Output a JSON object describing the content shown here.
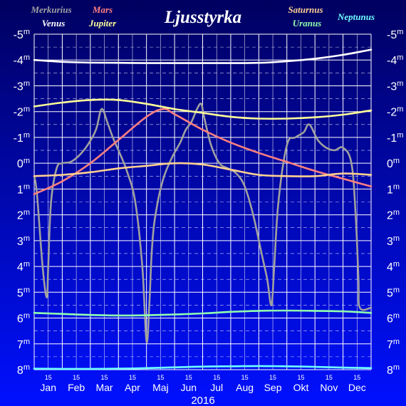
{
  "chart_data": {
    "type": "line",
    "title": "Ljusstyrka",
    "year_label": "2016",
    "x_unit": "month",
    "xlim": [
      0,
      12
    ],
    "ylim": [
      -5,
      8
    ],
    "y_inverted": true,
    "y_unit": "m",
    "grid": true,
    "legend_position": "top",
    "y_ticks": [
      {
        "v": -5,
        "label": "-5"
      },
      {
        "v": -4,
        "label": "-4"
      },
      {
        "v": -3,
        "label": "-3"
      },
      {
        "v": -2,
        "label": "-2"
      },
      {
        "v": -1,
        "label": "-1"
      },
      {
        "v": 0,
        "label": "0"
      },
      {
        "v": 1,
        "label": "1"
      },
      {
        "v": 2,
        "label": "2"
      },
      {
        "v": 3,
        "label": "3"
      },
      {
        "v": 4,
        "label": "4"
      },
      {
        "v": 5,
        "label": "5"
      },
      {
        "v": 6,
        "label": "6"
      },
      {
        "v": 7,
        "label": "7"
      },
      {
        "v": 8,
        "label": "8"
      }
    ],
    "months": [
      "Jan",
      "Feb",
      "Mar",
      "Apr",
      "Maj",
      "Jun",
      "Jul",
      "Aug",
      "Sep",
      "Okt",
      "Nov",
      "Dec"
    ],
    "mid_label": "15",
    "series": [
      {
        "name": "Merkurius",
        "color": "#a0a0a0",
        "x": [
          0.0,
          0.1,
          0.3,
          0.45,
          0.5,
          0.6,
          0.8,
          1.0,
          1.3,
          1.6,
          1.9,
          2.2,
          2.4,
          2.6,
          2.8,
          3.0,
          3.3,
          3.6,
          3.85,
          4.0,
          4.1,
          4.2,
          4.35,
          4.6,
          4.9,
          5.2,
          5.4,
          5.6,
          5.8,
          5.95,
          6.05,
          6.3,
          6.6,
          6.9,
          7.2,
          7.5,
          7.8,
          8.1,
          8.3,
          8.45,
          8.55,
          8.7,
          9.0,
          9.3,
          9.6,
          9.8,
          10.1,
          10.4,
          10.7,
          11.0,
          11.3,
          11.45,
          11.55,
          11.6,
          12.0
        ],
        "y": [
          0.5,
          1.2,
          4.0,
          5.2,
          4.0,
          1.5,
          0.2,
          0.0,
          -0.05,
          -0.3,
          -0.7,
          -1.3,
          -2.1,
          -1.6,
          -1.0,
          -0.5,
          0.3,
          1.5,
          4.0,
          6.9,
          5.5,
          3.2,
          1.8,
          0.6,
          -0.2,
          -0.8,
          -1.3,
          -1.6,
          -2.1,
          -2.3,
          -1.8,
          -0.7,
          0.0,
          0.2,
          0.4,
          0.9,
          2.0,
          3.5,
          4.5,
          5.5,
          4.0,
          1.5,
          -0.7,
          -1.0,
          -1.2,
          -1.5,
          -0.9,
          -0.6,
          -0.5,
          -0.6,
          0.0,
          2.0,
          4.5,
          5.6,
          5.6
        ]
      },
      {
        "name": "Venus",
        "color": "#ffffff",
        "x": [
          0,
          1,
          2,
          3,
          4,
          5,
          6,
          7,
          8,
          9,
          10,
          11,
          12
        ],
        "y": [
          -4.0,
          -3.93,
          -3.9,
          -3.89,
          -3.88,
          -3.88,
          -3.88,
          -3.88,
          -3.89,
          -3.95,
          -4.05,
          -4.2,
          -4.4
        ]
      },
      {
        "name": "Mars",
        "color": "#ff8080",
        "x": [
          0,
          1,
          2,
          3,
          4,
          4.6,
          5,
          6,
          7,
          8,
          9,
          10,
          11,
          12
        ],
        "y": [
          1.2,
          0.7,
          0.0,
          -0.9,
          -1.8,
          -2.1,
          -1.9,
          -1.3,
          -0.8,
          -0.4,
          -0.05,
          0.3,
          0.6,
          0.9
        ]
      },
      {
        "name": "Jupiter",
        "color": "#ffff99",
        "x": [
          0,
          1,
          2,
          3,
          4,
          5,
          6,
          7,
          8,
          9,
          10,
          11,
          12
        ],
        "y": [
          -2.2,
          -2.35,
          -2.45,
          -2.45,
          -2.3,
          -2.1,
          -1.95,
          -1.8,
          -1.73,
          -1.73,
          -1.78,
          -1.88,
          -2.05
        ]
      },
      {
        "name": "Saturnus",
        "color": "#ffd090",
        "x": [
          0,
          1,
          2,
          3,
          4,
          5,
          6,
          7,
          8,
          9,
          10,
          11,
          12
        ],
        "y": [
          0.5,
          0.45,
          0.35,
          0.2,
          0.1,
          0.0,
          0.05,
          0.25,
          0.45,
          0.5,
          0.5,
          0.4,
          0.45
        ]
      },
      {
        "name": "Uranus",
        "color": "#90ffb0",
        "x": [
          0,
          1,
          2,
          3,
          4,
          5,
          6,
          7,
          8,
          9,
          10,
          11,
          12
        ],
        "y": [
          5.8,
          5.84,
          5.88,
          5.9,
          5.89,
          5.86,
          5.82,
          5.76,
          5.72,
          5.71,
          5.72,
          5.74,
          5.8
        ]
      },
      {
        "name": "Neptunus",
        "color": "#70ffff",
        "x": [
          0,
          1,
          2,
          3,
          4,
          5,
          6,
          7,
          8,
          9,
          10,
          11,
          12
        ],
        "y": [
          7.96,
          7.97,
          7.97,
          7.96,
          7.94,
          7.91,
          7.88,
          7.87,
          7.86,
          7.87,
          7.89,
          7.92,
          7.94
        ]
      }
    ],
    "legend": [
      {
        "name": "Merkurius",
        "color": "#a0a0a0"
      },
      {
        "name": "Venus",
        "color": "#ffffff"
      },
      {
        "name": "Mars",
        "color": "#ff8080"
      },
      {
        "name": "Jupiter",
        "color": "#ffff99"
      },
      {
        "name": "Saturnus",
        "color": "#ffd090"
      },
      {
        "name": "Uranus",
        "color": "#90ffb0"
      },
      {
        "name": "Neptunus",
        "color": "#70ffff"
      }
    ],
    "background": {
      "top": "#000060",
      "bottom": "#0010ff"
    },
    "grid_color": "#ffffff"
  }
}
